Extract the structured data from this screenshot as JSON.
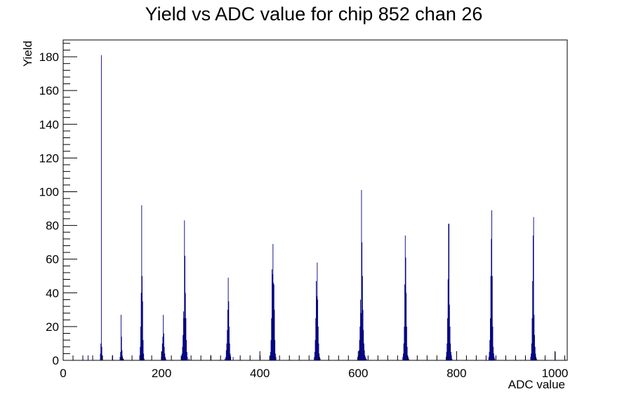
{
  "chart_data": {
    "type": "bar",
    "title": "Yield vs ADC value for chip 852 chan 26",
    "xlabel": "ADC value",
    "ylabel": "Yield",
    "xlim": [
      0,
      1025
    ],
    "ylim": [
      0,
      190
    ],
    "x_ticks": [
      0,
      200,
      400,
      600,
      800,
      1000
    ],
    "y_ticks": [
      0,
      20,
      40,
      60,
      80,
      100,
      120,
      140,
      160,
      180
    ],
    "grid": false,
    "legend": "none",
    "series": [
      {
        "color": "#000080",
        "x": [
          50,
          75,
          76,
          77,
          78,
          79,
          100,
          115,
          116,
          117,
          118,
          119,
          120,
          121,
          122,
          155,
          156,
          157,
          158,
          159,
          160,
          161,
          162,
          163,
          164,
          199,
          200,
          201,
          202,
          203,
          204,
          205,
          206,
          207,
          208,
          240,
          241,
          242,
          243,
          244,
          245,
          246,
          247,
          248,
          249,
          250,
          251,
          252,
          255,
          300,
          328,
          330,
          331,
          332,
          333,
          334,
          335,
          336,
          337,
          338,
          339,
          340,
          345,
          400,
          420,
          421,
          422,
          423,
          424,
          425,
          426,
          427,
          428,
          429,
          430,
          431,
          432,
          510,
          511,
          512,
          513,
          514,
          515,
          516,
          517,
          518,
          519,
          520,
          521,
          522,
          598,
          600,
          601,
          602,
          603,
          604,
          605,
          606,
          607,
          608,
          609,
          610,
          611,
          612,
          613,
          614,
          615,
          616,
          690,
          691,
          692,
          693,
          694,
          695,
          696,
          697,
          698,
          699,
          700,
          701,
          702,
          778,
          779,
          780,
          781,
          782,
          783,
          784,
          785,
          786,
          787,
          788,
          789,
          790,
          865,
          866,
          867,
          868,
          869,
          870,
          871,
          872,
          873,
          874,
          875,
          876,
          877,
          950,
          951,
          952,
          953,
          954,
          955,
          956,
          957,
          958,
          959,
          960,
          961,
          962,
          1000
        ],
        "values": [
          3,
          4,
          10,
          181,
          8,
          2,
          3,
          2,
          5,
          27,
          14,
          6,
          2,
          1,
          1,
          3,
          8,
          20,
          40,
          92,
          50,
          35,
          12,
          4,
          1,
          2,
          5,
          10,
          14,
          27,
          16,
          8,
          4,
          2,
          1,
          2,
          4,
          8,
          15,
          29,
          25,
          83,
          62,
          40,
          25,
          12,
          5,
          2,
          1,
          3,
          1,
          2,
          6,
          10,
          18,
          30,
          49,
          35,
          20,
          10,
          4,
          2,
          2,
          3,
          2,
          5,
          12,
          25,
          54,
          51,
          69,
          46,
          45,
          30,
          12,
          4,
          2,
          2,
          5,
          12,
          25,
          47,
          38,
          58,
          36,
          20,
          10,
          4,
          2,
          1,
          2,
          3,
          6,
          12,
          20,
          36,
          28,
          101,
          70,
          50,
          30,
          18,
          10,
          6,
          3,
          2,
          1,
          1,
          2,
          4,
          10,
          20,
          45,
          74,
          61,
          40,
          20,
          8,
          3,
          2,
          1,
          2,
          5,
          10,
          25,
          48,
          81,
          81,
          33,
          20,
          10,
          5,
          3,
          1,
          2,
          5,
          12,
          25,
          50,
          72,
          89,
          50,
          20,
          8,
          4,
          2,
          1,
          2,
          4,
          10,
          25,
          47,
          74,
          85,
          27,
          15,
          8,
          4,
          2,
          1,
          5
        ]
      }
    ]
  }
}
